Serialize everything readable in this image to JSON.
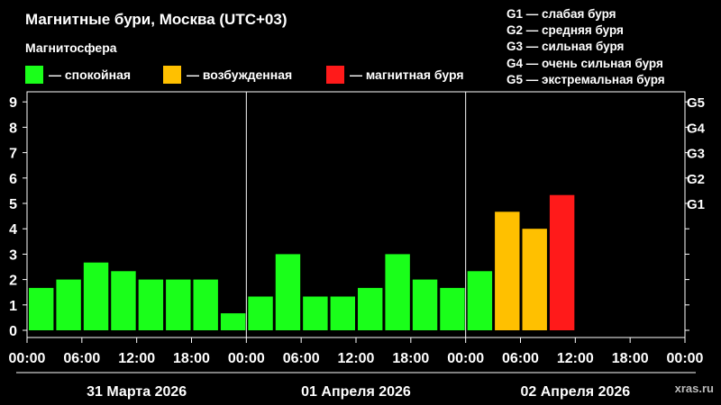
{
  "header": {
    "title": "Магнитные бури, Москва (UTC+03)",
    "subtitle": "Магнитосфера"
  },
  "legend": [
    {
      "label": "— спокойная",
      "color": "#1aff1a"
    },
    {
      "label": "— возбужденная",
      "color": "#ffc000"
    },
    {
      "label": "— магнитная буря",
      "color": "#ff1a1a"
    }
  ],
  "storm_scale": [
    "G1 — слабая буря",
    "G2 — средняя буря",
    "G3 — сильная буря",
    "G4 — очень сильная буря",
    "G5 — экстремальная буря"
  ],
  "watermark": "xras.ru",
  "chart_data": {
    "type": "bar",
    "title": "",
    "ylim": [
      0,
      9
    ],
    "y_ticks": [
      "0",
      "1",
      "2",
      "3",
      "4",
      "5",
      "6",
      "7",
      "8",
      "9"
    ],
    "right_ticks": [
      {
        "label": "G1",
        "value": 5
      },
      {
        "label": "G2",
        "value": 6
      },
      {
        "label": "G3",
        "value": 7
      },
      {
        "label": "G4",
        "value": 8
      },
      {
        "label": "G5",
        "value": 9
      }
    ],
    "x_tick_labels": [
      "00:00",
      "06:00",
      "12:00",
      "18:00",
      "00:00",
      "06:00",
      "12:00",
      "18:00",
      "00:00",
      "06:00",
      "12:00",
      "18:00",
      "00:00"
    ],
    "days": [
      "31 Марта 2026",
      "01 Апреля 2026",
      "02 Апреля 2026"
    ],
    "bars_per_day": 8,
    "values": [
      1.67,
      2.0,
      2.67,
      2.33,
      2.0,
      2.0,
      2.0,
      0.67,
      1.33,
      3.0,
      1.33,
      1.33,
      1.67,
      3.0,
      2.0,
      1.67,
      2.33,
      4.67,
      4.0,
      5.33
    ],
    "levels": [
      "quiet",
      "quiet",
      "quiet",
      "quiet",
      "quiet",
      "quiet",
      "quiet",
      "quiet",
      "quiet",
      "quiet",
      "quiet",
      "quiet",
      "quiet",
      "quiet",
      "quiet",
      "quiet",
      "quiet",
      "active",
      "active",
      "storm"
    ],
    "colors": {
      "quiet": "#1aff1a",
      "active": "#ffc000",
      "storm": "#ff1a1a"
    },
    "grid": false,
    "legend_position": "top"
  }
}
